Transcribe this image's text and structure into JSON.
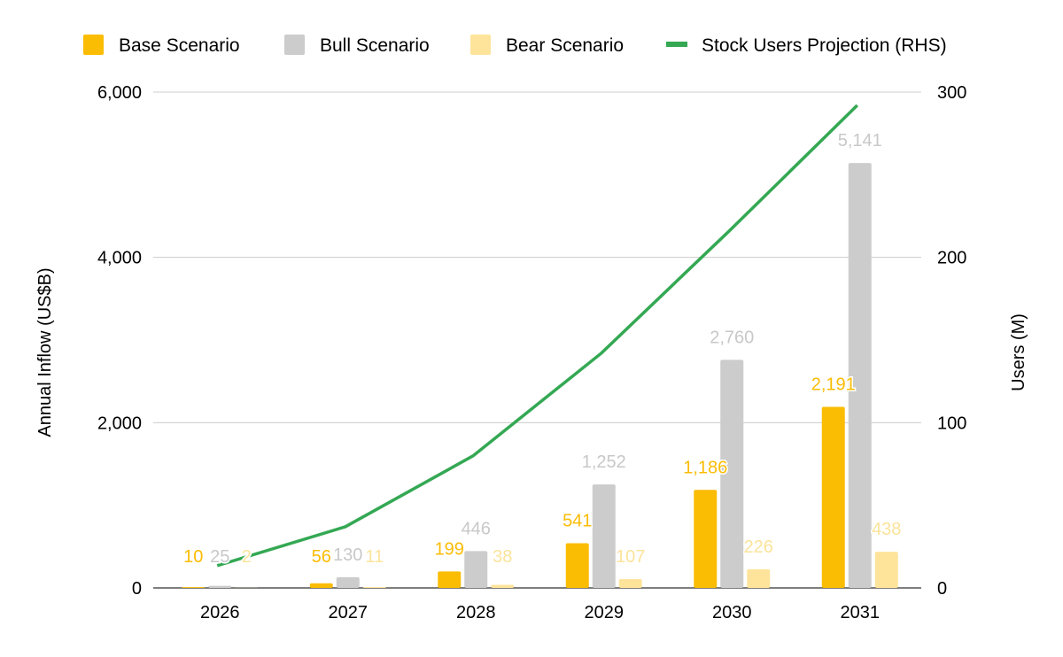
{
  "chart_data": {
    "type": "bar",
    "categories": [
      "2026",
      "2027",
      "2028",
      "2029",
      "2030",
      "2031"
    ],
    "series": [
      {
        "name": "Base Scenario",
        "color": "#fbbc04",
        "label_color": "#fbbc04",
        "values": [
          10,
          56,
          199,
          541,
          1186,
          2191
        ],
        "labels": [
          "10",
          "56",
          "199",
          "541",
          "1,186",
          "2,191"
        ]
      },
      {
        "name": "Bull Scenario",
        "color": "#cccccc",
        "label_color": "#c8c8c8",
        "values": [
          25,
          130,
          446,
          1252,
          2760,
          5141
        ],
        "labels": [
          "25",
          "130",
          "446",
          "1,252",
          "2,760",
          "5,141"
        ]
      },
      {
        "name": "Bear Scenario",
        "color": "#fee49b",
        "label_color": "#fbe39a",
        "values": [
          2,
          11,
          38,
          107,
          226,
          438
        ],
        "labels": [
          "2",
          "11",
          "38",
          "107",
          "226",
          "438"
        ]
      }
    ],
    "line_series": {
      "name": "Stock Users Projection (RHS)",
      "color": "#34a853",
      "axis": "right",
      "values": [
        13.5,
        37,
        80,
        142,
        216,
        292
      ]
    },
    "ylabel": "Annual Inflow (US$B)",
    "y2label": "Users (M)",
    "ylim": [
      0,
      6000
    ],
    "y2lim": [
      0,
      300
    ],
    "yticks": [
      "0",
      "2,000",
      "4,000",
      "6,000"
    ],
    "y2ticks": [
      "0",
      "100",
      "200",
      "300"
    ],
    "ytick_values": [
      0,
      2000,
      4000,
      6000
    ],
    "y2tick_values": [
      0,
      100,
      200,
      300
    ],
    "grid": true,
    "legend_position": "top"
  }
}
